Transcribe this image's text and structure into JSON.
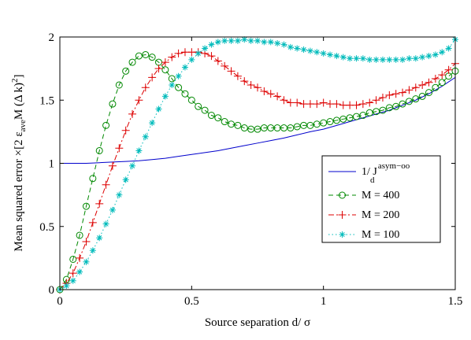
{
  "chart_data": {
    "type": "line",
    "xlabel": "Source separation  d/ σ",
    "ylabel": "Mean squared error × [2 ε_ave M (Δ k)²]",
    "ylabel_parts": {
      "prefix": "Mean squared error",
      "times": "×",
      "bracket_open": "[2 ε",
      "ave_sub": "ave",
      "mid": "M (Δ k)",
      "sq": "2",
      "bracket_close": "]"
    },
    "xlim": [
      0,
      1.5
    ],
    "ylim": [
      0,
      2
    ],
    "xticks": [
      0,
      0.5,
      1,
      1.5
    ],
    "xtick_labels": [
      "0",
      "0.5",
      "1",
      "1.5"
    ],
    "yticks": [
      0,
      0.5,
      1,
      1.5,
      2
    ],
    "ytick_labels": [
      "0",
      "0.5",
      "1",
      "1.5",
      "2"
    ],
    "legend_position": "right",
    "legend_entries": [
      {
        "label_main": "1/ J",
        "label_sub": "d",
        "label_sup": "asym−oo"
      },
      {
        "label": "M = 400"
      },
      {
        "label": "M = 200"
      },
      {
        "label": "M = 100"
      }
    ],
    "series": [
      {
        "name": "1/ J_d^{asym−oo}",
        "color": "#0000cc",
        "style": "solid",
        "marker": "none",
        "x": [
          0,
          0.05,
          0.1,
          0.15,
          0.2,
          0.25,
          0.3,
          0.35,
          0.4,
          0.45,
          0.5,
          0.55,
          0.6,
          0.65,
          0.7,
          0.75,
          0.8,
          0.85,
          0.9,
          0.95,
          1.0,
          1.05,
          1.1,
          1.15,
          1.2,
          1.25,
          1.3,
          1.35,
          1.4,
          1.45,
          1.5
        ],
        "y": [
          1.0,
          1.0,
          1.0,
          1.005,
          1.01,
          1.015,
          1.02,
          1.03,
          1.04,
          1.055,
          1.07,
          1.085,
          1.1,
          1.12,
          1.14,
          1.16,
          1.18,
          1.2,
          1.225,
          1.25,
          1.27,
          1.3,
          1.33,
          1.36,
          1.39,
          1.42,
          1.46,
          1.5,
          1.55,
          1.61,
          1.68
        ]
      },
      {
        "name": "M = 400",
        "color": "#008800",
        "style": "dashed",
        "marker": "circle",
        "x": [
          0.0,
          0.025,
          0.05,
          0.075,
          0.1,
          0.125,
          0.15,
          0.175,
          0.2,
          0.225,
          0.25,
          0.275,
          0.3,
          0.325,
          0.35,
          0.375,
          0.4,
          0.425,
          0.45,
          0.475,
          0.5,
          0.525,
          0.55,
          0.575,
          0.6,
          0.625,
          0.65,
          0.675,
          0.7,
          0.725,
          0.75,
          0.775,
          0.8,
          0.825,
          0.85,
          0.875,
          0.9,
          0.925,
          0.95,
          0.975,
          1.0,
          1.025,
          1.05,
          1.075,
          1.1,
          1.125,
          1.15,
          1.175,
          1.2,
          1.225,
          1.25,
          1.275,
          1.3,
          1.325,
          1.35,
          1.375,
          1.4,
          1.425,
          1.45,
          1.475,
          1.5
        ],
        "y": [
          0.0,
          0.08,
          0.24,
          0.43,
          0.66,
          0.88,
          1.1,
          1.3,
          1.47,
          1.62,
          1.73,
          1.8,
          1.85,
          1.86,
          1.84,
          1.8,
          1.74,
          1.67,
          1.6,
          1.55,
          1.5,
          1.45,
          1.42,
          1.38,
          1.36,
          1.33,
          1.31,
          1.3,
          1.28,
          1.27,
          1.27,
          1.28,
          1.28,
          1.28,
          1.28,
          1.28,
          1.29,
          1.3,
          1.3,
          1.31,
          1.32,
          1.33,
          1.34,
          1.35,
          1.36,
          1.37,
          1.38,
          1.4,
          1.41,
          1.42,
          1.44,
          1.45,
          1.47,
          1.49,
          1.51,
          1.53,
          1.56,
          1.6,
          1.64,
          1.69,
          1.73
        ]
      },
      {
        "name": "M = 200",
        "color": "#dd0000",
        "style": "dashdot",
        "marker": "plus",
        "x": [
          0.0,
          0.025,
          0.05,
          0.075,
          0.1,
          0.125,
          0.15,
          0.175,
          0.2,
          0.225,
          0.25,
          0.275,
          0.3,
          0.325,
          0.35,
          0.375,
          0.4,
          0.425,
          0.45,
          0.475,
          0.5,
          0.525,
          0.55,
          0.575,
          0.6,
          0.625,
          0.65,
          0.675,
          0.7,
          0.725,
          0.75,
          0.775,
          0.8,
          0.825,
          0.85,
          0.875,
          0.9,
          0.925,
          0.95,
          0.975,
          1.0,
          1.025,
          1.05,
          1.075,
          1.1,
          1.125,
          1.15,
          1.175,
          1.2,
          1.225,
          1.25,
          1.275,
          1.3,
          1.325,
          1.35,
          1.375,
          1.4,
          1.425,
          1.45,
          1.475,
          1.5
        ],
        "y": [
          0.0,
          0.05,
          0.13,
          0.25,
          0.38,
          0.53,
          0.68,
          0.83,
          0.98,
          1.12,
          1.26,
          1.39,
          1.5,
          1.6,
          1.68,
          1.75,
          1.8,
          1.84,
          1.87,
          1.88,
          1.88,
          1.88,
          1.87,
          1.85,
          1.81,
          1.77,
          1.73,
          1.69,
          1.65,
          1.62,
          1.6,
          1.57,
          1.55,
          1.53,
          1.5,
          1.48,
          1.48,
          1.47,
          1.47,
          1.47,
          1.48,
          1.47,
          1.47,
          1.46,
          1.46,
          1.46,
          1.47,
          1.48,
          1.5,
          1.52,
          1.54,
          1.55,
          1.56,
          1.58,
          1.6,
          1.62,
          1.64,
          1.67,
          1.7,
          1.74,
          1.79
        ]
      },
      {
        "name": "M = 100",
        "color": "#00bbbb",
        "style": "dotted",
        "marker": "star",
        "x": [
          0.0,
          0.025,
          0.05,
          0.075,
          0.1,
          0.125,
          0.15,
          0.175,
          0.2,
          0.225,
          0.25,
          0.275,
          0.3,
          0.325,
          0.35,
          0.375,
          0.4,
          0.425,
          0.45,
          0.475,
          0.5,
          0.525,
          0.55,
          0.575,
          0.6,
          0.625,
          0.65,
          0.675,
          0.7,
          0.725,
          0.75,
          0.775,
          0.8,
          0.825,
          0.85,
          0.875,
          0.9,
          0.925,
          0.95,
          0.975,
          1.0,
          1.025,
          1.05,
          1.075,
          1.1,
          1.125,
          1.15,
          1.175,
          1.2,
          1.225,
          1.25,
          1.275,
          1.3,
          1.325,
          1.35,
          1.375,
          1.4,
          1.425,
          1.45,
          1.475,
          1.5
        ],
        "y": [
          0.0,
          0.03,
          0.07,
          0.14,
          0.22,
          0.31,
          0.41,
          0.52,
          0.63,
          0.75,
          0.87,
          0.98,
          1.1,
          1.21,
          1.32,
          1.43,
          1.53,
          1.62,
          1.69,
          1.76,
          1.82,
          1.87,
          1.91,
          1.94,
          1.96,
          1.97,
          1.97,
          1.97,
          1.98,
          1.97,
          1.97,
          1.96,
          1.96,
          1.95,
          1.94,
          1.92,
          1.91,
          1.9,
          1.89,
          1.88,
          1.87,
          1.86,
          1.85,
          1.84,
          1.83,
          1.83,
          1.83,
          1.82,
          1.82,
          1.82,
          1.82,
          1.82,
          1.82,
          1.83,
          1.83,
          1.84,
          1.85,
          1.86,
          1.88,
          1.91,
          1.98
        ]
      }
    ]
  }
}
